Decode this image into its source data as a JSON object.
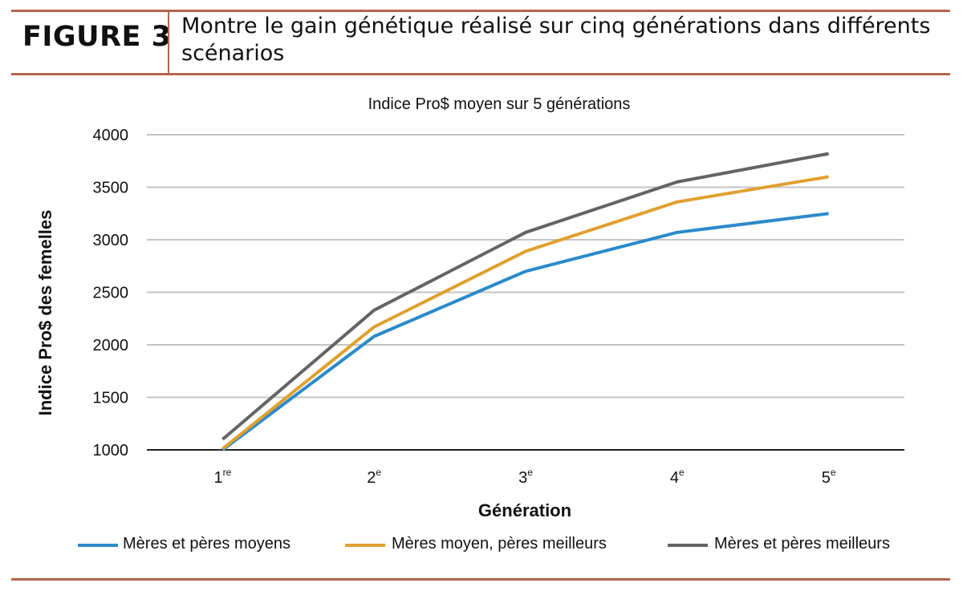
{
  "figure": {
    "label": "FIGURE 3",
    "caption": "Montre le gain génétique réalisé sur cinq générations dans différents scénarios"
  },
  "chart_data": {
    "type": "line",
    "title": "Indice Pro$ moyen sur 5 générations",
    "xlabel": "Génération",
    "ylabel": "Indice Pro$ des femelles",
    "categories": [
      {
        "num": "1",
        "sup": "re"
      },
      {
        "num": "2",
        "sup": "e"
      },
      {
        "num": "3",
        "sup": "e"
      },
      {
        "num": "4",
        "sup": "e"
      },
      {
        "num": "5",
        "sup": "e"
      }
    ],
    "ylim": [
      1000,
      4000
    ],
    "yticks": [
      1000,
      1500,
      2000,
      2500,
      3000,
      3500,
      4000
    ],
    "grid": true,
    "legend_position": "bottom",
    "series": [
      {
        "name": "Mères et pères moyens",
        "color": "#2b8acb",
        "values": [
          1000,
          2080,
          2700,
          3070,
          3250
        ]
      },
      {
        "name": "Mères moyen, pères meilleurs",
        "color": "#e0a030",
        "values": [
          1010,
          2170,
          2890,
          3360,
          3600
        ]
      },
      {
        "name": "Mères et pères meilleurs",
        "color": "#646464",
        "values": [
          1100,
          2330,
          3070,
          3550,
          3820
        ]
      }
    ]
  }
}
